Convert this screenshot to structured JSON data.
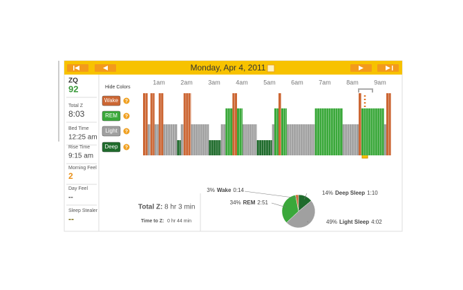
{
  "header": {
    "date": "Monday, Apr 4, 2011"
  },
  "sidebar": [
    {
      "label": "ZQ",
      "value": "92",
      "color": "#3a9a3a"
    },
    {
      "label": "Total Z",
      "value": "8:03",
      "color": "#444444"
    },
    {
      "label": "Bed Time",
      "value": "12:25 am",
      "color": "#444444"
    },
    {
      "label": "Rise Time",
      "value": "9:15 am",
      "color": "#444444"
    },
    {
      "label": "Morning Feel",
      "value": "2",
      "color": "#e8901a"
    },
    {
      "label": "Day Feel",
      "value": "--",
      "color": "#444444"
    },
    {
      "label": "Sleep Stealer",
      "value": "--",
      "color": "#7a6a10"
    }
  ],
  "legend": {
    "toggle": "Hide Colors",
    "help": "?",
    "stages": [
      {
        "name": "Wake",
        "color": "#cc6633"
      },
      {
        "name": "REM",
        "color": "#3aa83a"
      },
      {
        "name": "Light",
        "color": "#a0a0a0"
      },
      {
        "name": "Deep",
        "color": "#1f6b2c"
      }
    ]
  },
  "hypnogram": {
    "hours": [
      "1am",
      "2am",
      "3am",
      "4am",
      "5am",
      "6am",
      "7am",
      "8am",
      "9am"
    ],
    "segments": [
      {
        "stage": "Wake",
        "minutes": 10
      },
      {
        "stage": "Light",
        "minutes": 6
      },
      {
        "stage": "Wake",
        "minutes": 9
      },
      {
        "stage": "Light",
        "minutes": 9
      },
      {
        "stage": "Wake",
        "minutes": 10
      },
      {
        "stage": "Light",
        "minutes": 30
      },
      {
        "stage": "Deep",
        "minutes": 8
      },
      {
        "stage": "Light",
        "minutes": 6
      },
      {
        "stage": "Wake",
        "minutes": 16
      },
      {
        "stage": "Light",
        "minutes": 39
      },
      {
        "stage": "Deep",
        "minutes": 26
      },
      {
        "stage": "Light",
        "minutes": 10
      },
      {
        "stage": "REM",
        "minutes": 15
      },
      {
        "stage": "Wake",
        "minutes": 10
      },
      {
        "stage": "REM",
        "minutes": 12
      },
      {
        "stage": "Light",
        "minutes": 31
      },
      {
        "stage": "Deep",
        "minutes": 33
      },
      {
        "stage": "Light",
        "minutes": 5
      },
      {
        "stage": "REM",
        "minutes": 9
      },
      {
        "stage": "Wake",
        "minutes": 6
      },
      {
        "stage": "REM",
        "minutes": 12
      },
      {
        "stage": "Light",
        "minutes": 61
      },
      {
        "stage": "REM",
        "minutes": 60
      },
      {
        "stage": "Light",
        "minutes": 35
      },
      {
        "stage": "Wake",
        "minutes": 6
      },
      {
        "stage": "REM",
        "minutes": 49
      },
      {
        "stage": "Light",
        "minutes": 5
      },
      {
        "stage": "Wake",
        "minutes": 10
      }
    ]
  },
  "summary": {
    "total_label": "Total Z:",
    "total_value": "8 hr 3 min",
    "ttz_label": "Time to Z:",
    "ttz_value": "0 hr 44 min"
  },
  "pie": {
    "type": "pie",
    "categories": [
      "Wake",
      "Deep Sleep",
      "Light Sleep",
      "REM"
    ],
    "values": [
      3,
      14,
      49,
      34
    ],
    "value_labels": [
      "3%",
      "14%",
      "49%",
      "34%"
    ],
    "durations": [
      "0:14",
      "1:10",
      "4:02",
      "2:51"
    ],
    "colors": [
      "#cc6633",
      "#1f6b2c",
      "#a0a0a0",
      "#3aa83a"
    ]
  }
}
